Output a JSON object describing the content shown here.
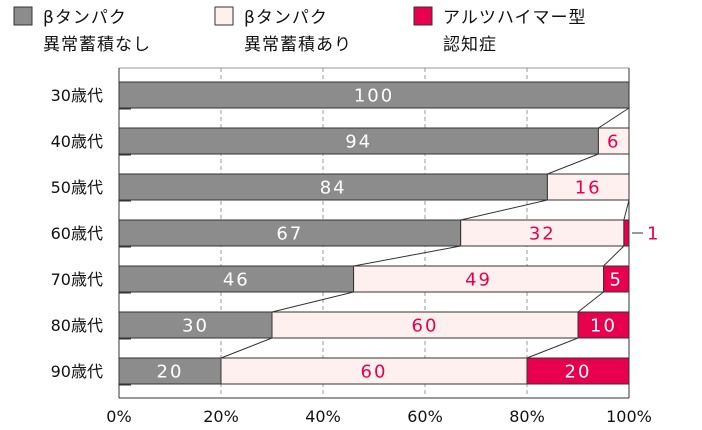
{
  "colors": {
    "no_accumulation": "#8c8c8c",
    "accumulation": "#fff0f0",
    "alzheimer": "#e8004e",
    "outline": "#333333",
    "grid": "#999999",
    "label_on_gray": "#ffffff",
    "label_on_pink": "#e8004e",
    "label_on_red": "#ffffff"
  },
  "chart_data": {
    "type": "bar",
    "orientation": "horizontal",
    "stacked": true,
    "categories": [
      "30歳代",
      "40歳代",
      "50歳代",
      "60歳代",
      "70歳代",
      "80歳代",
      "90歳代"
    ],
    "series": [
      {
        "name": [
          "βタンパク",
          "異常蓄積なし"
        ],
        "values": [
          100,
          94,
          84,
          67,
          46,
          30,
          20
        ]
      },
      {
        "name": [
          "βタンパク",
          "異常蓄積あり"
        ],
        "values": [
          0,
          6,
          16,
          32,
          49,
          60,
          60
        ]
      },
      {
        "name": [
          "アルツハイマー型",
          "認知症"
        ],
        "values": [
          0,
          0,
          0,
          1,
          5,
          10,
          20
        ]
      }
    ],
    "xlim": [
      0,
      100
    ],
    "x_ticks": [
      "0%",
      "20%",
      "40%",
      "60%",
      "80%",
      "100%"
    ],
    "grid": "vertical-dashed",
    "legend_position": "top",
    "connector_lines": true
  }
}
